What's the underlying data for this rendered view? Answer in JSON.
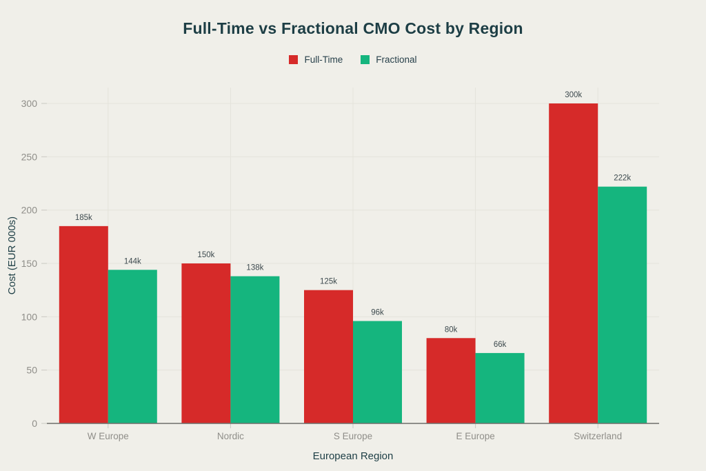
{
  "chart": {
    "title": "Full-Time vs Fractional CMO Cost by Region",
    "xlabel": "European Region",
    "ylabel": "Cost (EUR 000s)"
  },
  "chart_data": {
    "type": "bar",
    "title": "Full-Time vs Fractional CMO Cost by Region",
    "xlabel": "European Region",
    "ylabel": "Cost (EUR 000s)",
    "categories": [
      "W Europe",
      "Nordic",
      "S Europe",
      "E Europe",
      "Switzerland"
    ],
    "series": [
      {
        "name": "Full-Time",
        "color": "#d62a29",
        "values": [
          185,
          150,
          125,
          80,
          300
        ],
        "data_labels": [
          "185k",
          "150k",
          "125k",
          "80k",
          "300k"
        ]
      },
      {
        "name": "Fractional",
        "color": "#15b57e",
        "values": [
          144,
          138,
          96,
          66,
          222
        ],
        "data_labels": [
          "144k",
          "138k",
          "96k",
          "66k",
          "222k"
        ]
      }
    ],
    "ylim": [
      0,
      300
    ],
    "yticks": [
      0,
      50,
      100,
      150,
      200,
      250,
      300
    ],
    "ytick_labels": [
      "0",
      "50",
      "100",
      "150",
      "200",
      "250",
      "300"
    ],
    "grid": true,
    "legend_position": "top"
  },
  "colors": {
    "background": "#f0efe9",
    "title_text": "#1d3e45",
    "tick_text": "#8f8e89",
    "gridline": "#e4e3db",
    "axis_line": "#6e6e6a",
    "full_time": "#d62a29",
    "fractional": "#15b57e"
  }
}
